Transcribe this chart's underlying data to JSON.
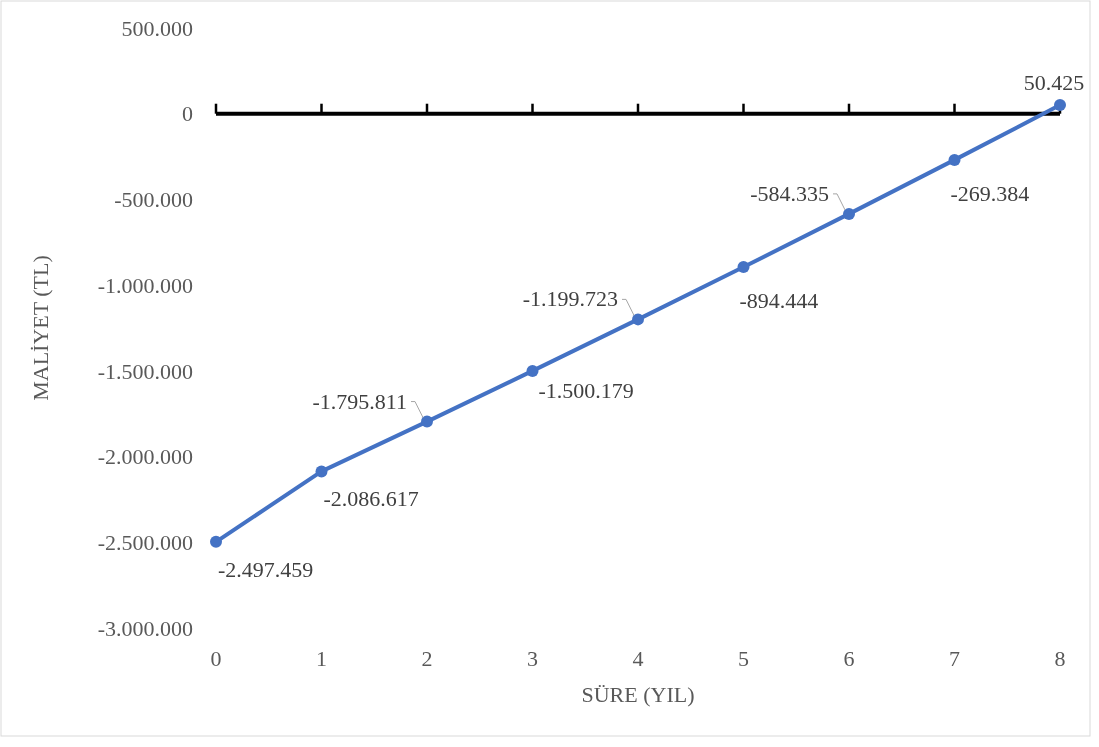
{
  "chart_data": {
    "type": "line",
    "xlabel": "SÜRE (YIL)",
    "ylabel": "MALİYET (TL)",
    "x": [
      0,
      1,
      2,
      3,
      4,
      5,
      6,
      7,
      8
    ],
    "series": [
      {
        "color": "#4472c4",
        "values": [
          -2497459,
          -2086617,
          -1795811,
          -1500179,
          -1199723,
          -894444,
          -584335,
          -269384,
          50425
        ],
        "value_labels": [
          "-2.497.459",
          "-2.086.617",
          "-1.795.811",
          "-1.500.179",
          "-1.199.723",
          "-894.444",
          "-584.335",
          "-269.384",
          "50.425"
        ]
      }
    ],
    "xlim": [
      0,
      8
    ],
    "xticks": [
      0,
      1,
      2,
      3,
      4,
      5,
      6,
      7,
      8
    ],
    "ylim": [
      -3000000,
      500000
    ],
    "yticks": [
      {
        "value": 500000,
        "label": "500.000"
      },
      {
        "value": 0,
        "label": "0"
      },
      {
        "value": -500000,
        "label": "-500.000"
      },
      {
        "value": -1000000,
        "label": "-1.000.000"
      },
      {
        "value": -1500000,
        "label": "-1.500.000"
      },
      {
        "value": -2000000,
        "label": "-2.000.000"
      },
      {
        "value": -2500000,
        "label": "-2.500.000"
      },
      {
        "value": -3000000,
        "label": "-3.000.000"
      }
    ],
    "marker": "circle",
    "line_style": "solid"
  }
}
